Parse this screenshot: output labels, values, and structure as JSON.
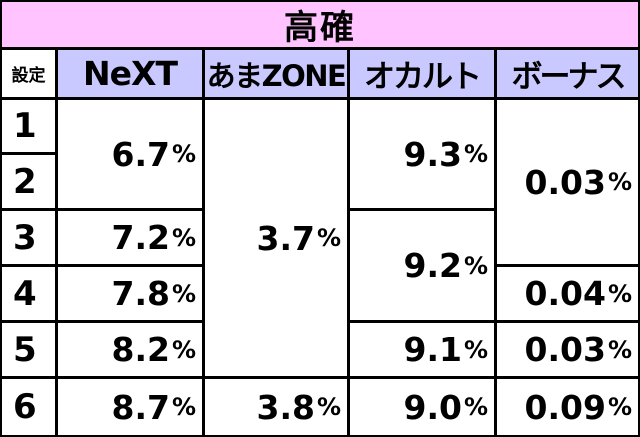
{
  "title": "高確",
  "headers": {
    "setting": "設定",
    "next": "NeXT",
    "amazone": "あまZONE",
    "okaruto": "オカルト",
    "bonus": "ボーナス"
  },
  "settings": [
    "1",
    "2",
    "3",
    "4",
    "5",
    "6"
  ],
  "percent_symbol": "%",
  "cells": {
    "next_1_2": "6.7",
    "next_3": "7.2",
    "next_4": "7.8",
    "next_5": "8.2",
    "next_6": "8.7",
    "amazone_1_5": "3.7",
    "amazone_6": "3.8",
    "okaruto_1_2": "9.3",
    "okaruto_3_4": "9.2",
    "okaruto_5": "9.1",
    "okaruto_6": "9.0",
    "bonus_1_3": "0.03",
    "bonus_4": "0.04",
    "bonus_5": "0.03",
    "bonus_6": "0.09"
  },
  "colors": {
    "title_bg": "#ffc4ff",
    "header_bg": "#c9c9ff",
    "cell_bg": "#ffffff",
    "border": "#000000"
  }
}
